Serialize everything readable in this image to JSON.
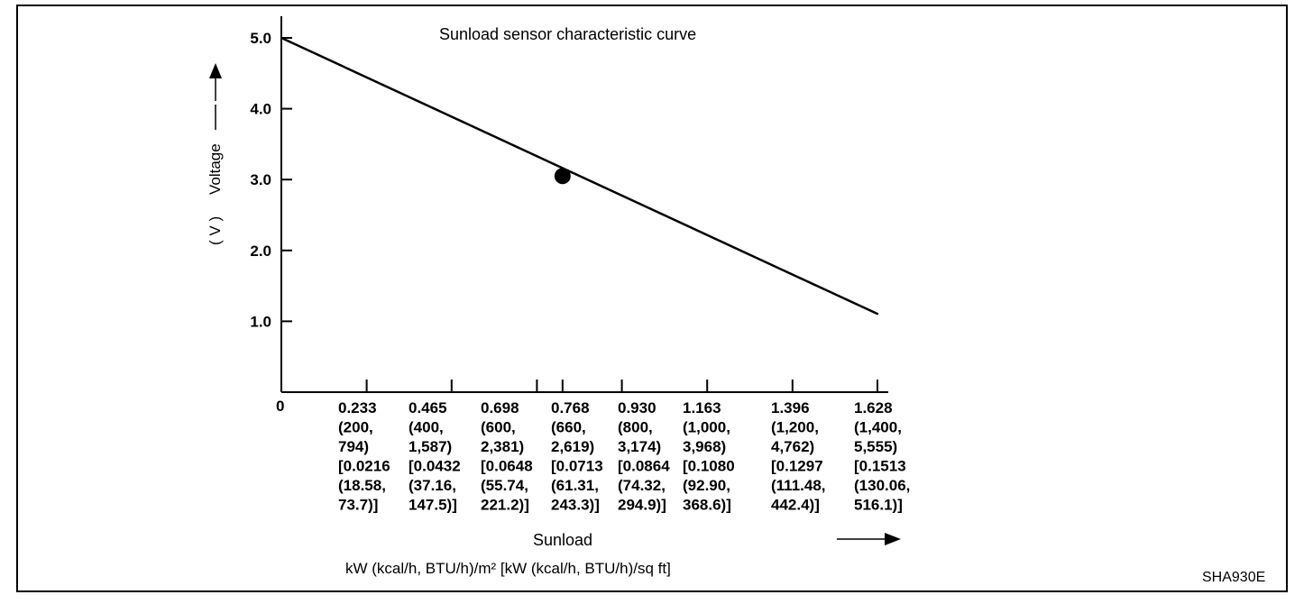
{
  "figure_id": "SHA930E",
  "chart_data": {
    "type": "line",
    "title": "Sunload sensor characteristic curve",
    "xlabel_line1": "Sunload",
    "xlabel_line2": "kW (kcal/h, BTU/h)/m²  [kW (kcal/h, BTU/h)/sq ft]",
    "ylabel_unit": "( V )",
    "ylabel": "Voltage",
    "xlim": [
      0,
      1.628
    ],
    "ylim": [
      0,
      5.0
    ],
    "x_origin_label": "0",
    "y_ticks": [
      "1.0",
      "2.0",
      "3.0",
      "4.0",
      "5.0"
    ],
    "x_ticks": [
      {
        "value": 0.233,
        "lines": [
          "0.233",
          "(200,",
          "794)",
          "[0.0216",
          "(18.58,",
          "73.7)]"
        ]
      },
      {
        "value": 0.465,
        "lines": [
          "0.465",
          "(400,",
          "1,587)",
          "[0.0432",
          "(37.16,",
          "147.5)]"
        ]
      },
      {
        "value": 0.698,
        "lines": [
          "0.698",
          "(600,",
          "2,381)",
          "[0.0648",
          "(55.74,",
          "221.2)]"
        ]
      },
      {
        "value": 0.768,
        "lines": [
          "0.768",
          "(660,",
          "2,619)",
          "[0.0713",
          "(61.31,",
          "243.3)]"
        ]
      },
      {
        "value": 0.93,
        "lines": [
          "0.930",
          "(800,",
          "3,174)",
          "[0.0864",
          "(74.32,",
          "294.9)]"
        ]
      },
      {
        "value": 1.163,
        "lines": [
          "1.163",
          "(1,000,",
          "3,968)",
          "[0.1080",
          "(92.90,",
          "368.6)]"
        ]
      },
      {
        "value": 1.396,
        "lines": [
          "1.396",
          "(1,200,",
          "4,762)",
          "[0.1297",
          "(111.48,",
          "442.4)]"
        ]
      },
      {
        "value": 1.628,
        "lines": [
          "1.628",
          "(1,400,",
          "5,555)",
          "[0.1513",
          "(130.06,",
          "516.1)]"
        ]
      }
    ],
    "series": [
      {
        "x": [
          0,
          1.63
        ],
        "y": [
          5.0,
          1.1
        ]
      }
    ],
    "marker": {
      "x": 0.768,
      "y": 3.05
    }
  }
}
